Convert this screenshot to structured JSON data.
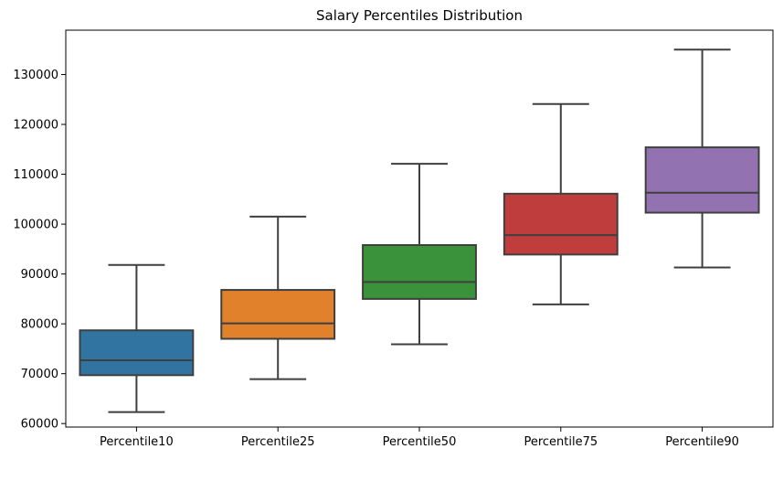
{
  "chart_data": {
    "type": "box",
    "title": "Salary Percentiles Distribution",
    "xlabel": "",
    "ylabel": "",
    "categories": [
      "Percentile10",
      "Percentile25",
      "Percentile50",
      "Percentile75",
      "Percentile90"
    ],
    "boxes": [
      {
        "category": "Percentile10",
        "whisker_low": 62300,
        "q1": 69700,
        "median": 72700,
        "q3": 78700,
        "whisker_high": 91800,
        "color": "#3274a1"
      },
      {
        "category": "Percentile25",
        "whisker_low": 68900,
        "q1": 77000,
        "median": 80100,
        "q3": 86800,
        "whisker_high": 101500,
        "color": "#e1812c"
      },
      {
        "category": "Percentile50",
        "whisker_low": 75900,
        "q1": 85000,
        "median": 88400,
        "q3": 95800,
        "whisker_high": 112100,
        "color": "#3a923a"
      },
      {
        "category": "Percentile75",
        "whisker_low": 83900,
        "q1": 93900,
        "median": 97800,
        "q3": 106100,
        "whisker_high": 124100,
        "color": "#c03d3e"
      },
      {
        "category": "Percentile90",
        "whisker_low": 91300,
        "q1": 102300,
        "median": 106300,
        "q3": 115400,
        "whisker_high": 135000,
        "color": "#9372b2"
      }
    ],
    "yticks": [
      60000,
      70000,
      80000,
      90000,
      100000,
      110000,
      120000,
      130000
    ],
    "ytick_labels": [
      "60000",
      "70000",
      "80000",
      "90000",
      "100000",
      "110000",
      "120000",
      "130000"
    ],
    "ylim": [
      59300,
      138900
    ],
    "grid": false,
    "line_color": "#3f3f3f"
  }
}
